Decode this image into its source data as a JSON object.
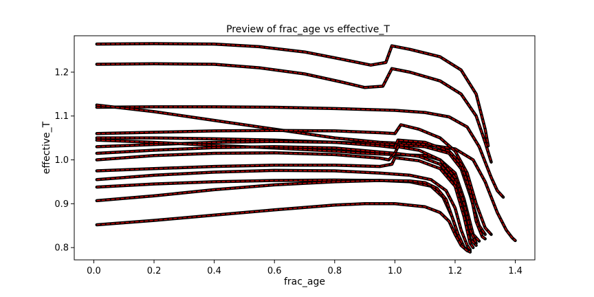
{
  "chart_data": {
    "type": "line",
    "title": "Preview of frac_age vs effective_T",
    "xlabel": "frac_age",
    "ylabel": "effective_T",
    "xlim": [
      -0.065,
      1.465
    ],
    "ylim": [
      0.772,
      1.283
    ],
    "xticks": [
      0.0,
      0.2,
      0.4,
      0.6,
      0.8,
      1.0,
      1.2,
      1.4
    ],
    "xtick_labels": [
      "0.0",
      "0.2",
      "0.4",
      "0.6",
      "0.8",
      "1.0",
      "1.2",
      "1.4"
    ],
    "yticks": [
      0.8,
      0.9,
      1.0,
      1.1,
      1.2
    ],
    "ytick_labels": [
      "0.8",
      "0.9",
      "1.0",
      "1.1",
      "1.2"
    ],
    "grid": false,
    "colors": {
      "line": "#c00000",
      "marker": "#000000",
      "axes": "#000000"
    },
    "series": [
      {
        "x": [
          0.01,
          0.2,
          0.4,
          0.55,
          0.7,
          0.82,
          0.92,
          0.97,
          0.99,
          1.05,
          1.15,
          1.22,
          1.27,
          1.3,
          1.31
        ],
        "y": [
          1.264,
          1.265,
          1.264,
          1.258,
          1.246,
          1.23,
          1.216,
          1.222,
          1.26,
          1.252,
          1.235,
          1.205,
          1.15,
          1.07,
          1.032
        ]
      },
      {
        "x": [
          0.01,
          0.2,
          0.4,
          0.55,
          0.7,
          0.82,
          0.9,
          0.96,
          0.99,
          1.05,
          1.15,
          1.22,
          1.27,
          1.3,
          1.32
        ],
        "y": [
          1.218,
          1.219,
          1.218,
          1.21,
          1.196,
          1.178,
          1.165,
          1.168,
          1.208,
          1.2,
          1.18,
          1.15,
          1.1,
          1.04,
          0.995
        ]
      },
      {
        "x": [
          0.01,
          0.2,
          0.4,
          0.6,
          0.8,
          1.0,
          1.1,
          1.18,
          1.24,
          1.28,
          1.32,
          1.34,
          1.36
        ],
        "y": [
          1.12,
          1.121,
          1.121,
          1.12,
          1.117,
          1.113,
          1.108,
          1.098,
          1.075,
          1.03,
          0.96,
          0.93,
          0.915
        ]
      },
      {
        "x": [
          0.01,
          0.2,
          0.4,
          0.6,
          0.8,
          0.95,
          1.1,
          1.2,
          1.26,
          1.3,
          1.34,
          1.37,
          1.39,
          1.4
        ],
        "y": [
          1.125,
          1.11,
          1.09,
          1.07,
          1.05,
          1.04,
          1.035,
          1.025,
          1.0,
          0.95,
          0.88,
          0.84,
          0.822,
          0.816
        ]
      },
      {
        "x": [
          0.01,
          0.2,
          0.4,
          0.6,
          0.8,
          0.95,
          1.0,
          1.02,
          1.08,
          1.15,
          1.2,
          1.24,
          1.27,
          1.3,
          1.32
        ],
        "y": [
          1.06,
          1.063,
          1.066,
          1.067,
          1.066,
          1.062,
          1.06,
          1.08,
          1.07,
          1.05,
          1.02,
          0.97,
          0.9,
          0.845,
          0.83
        ]
      },
      {
        "x": [
          0.01,
          0.2,
          0.4,
          0.6,
          0.8,
          0.9,
          1.0,
          1.1,
          1.18,
          1.22,
          1.25,
          1.28,
          1.3
        ],
        "y": [
          1.05,
          1.05,
          1.048,
          1.045,
          1.04,
          1.038,
          1.035,
          1.03,
          1.015,
          0.98,
          0.92,
          0.85,
          0.83
        ]
      },
      {
        "x": [
          0.01,
          0.2,
          0.4,
          0.6,
          0.8,
          0.95,
          1.0,
          1.01,
          1.1,
          1.18,
          1.22,
          1.25,
          1.27,
          1.29,
          1.3
        ],
        "y": [
          1.03,
          1.035,
          1.04,
          1.042,
          1.04,
          1.032,
          1.028,
          1.045,
          1.04,
          1.02,
          0.99,
          0.93,
          0.86,
          0.825,
          0.82
        ]
      },
      {
        "x": [
          0.01,
          0.2,
          0.4,
          0.6,
          0.8,
          0.9,
          1.0,
          1.1,
          1.15,
          1.2,
          1.23,
          1.26,
          1.28
        ],
        "y": [
          1.045,
          1.04,
          1.033,
          1.027,
          1.02,
          1.015,
          1.012,
          1.01,
          1.0,
          0.97,
          0.91,
          0.83,
          0.815
        ]
      },
      {
        "x": [
          0.01,
          0.2,
          0.4,
          0.6,
          0.8,
          0.95,
          1.0,
          1.01,
          1.08,
          1.15,
          1.2,
          1.23,
          1.25,
          1.27
        ],
        "y": [
          1.015,
          1.022,
          1.028,
          1.03,
          1.027,
          1.018,
          1.015,
          1.03,
          1.022,
          1.0,
          0.96,
          0.9,
          0.84,
          0.81
        ]
      },
      {
        "x": [
          0.01,
          0.2,
          0.4,
          0.6,
          0.8,
          0.95,
          0.98,
          1.0,
          1.08,
          1.15,
          1.2,
          1.23,
          1.25,
          1.27
        ],
        "y": [
          1.0,
          1.01,
          1.015,
          1.016,
          1.012,
          1.004,
          1.0,
          1.015,
          1.008,
          0.99,
          0.95,
          0.88,
          0.82,
          0.805
        ]
      },
      {
        "x": [
          0.01,
          0.2,
          0.4,
          0.6,
          0.8,
          0.95,
          0.99,
          1.0,
          1.08,
          1.15,
          1.2,
          1.23,
          1.25,
          1.26
        ],
        "y": [
          0.975,
          0.98,
          0.985,
          0.988,
          0.988,
          0.985,
          0.99,
          1.005,
          0.998,
          0.98,
          0.94,
          0.87,
          0.81,
          0.8
        ]
      },
      {
        "x": [
          0.01,
          0.2,
          0.4,
          0.6,
          0.8,
          0.95,
          1.05,
          1.12,
          1.17,
          1.2,
          1.22,
          1.24,
          1.25
        ],
        "y": [
          0.955,
          0.965,
          0.972,
          0.976,
          0.975,
          0.97,
          0.965,
          0.955,
          0.93,
          0.89,
          0.84,
          0.805,
          0.795
        ]
      },
      {
        "x": [
          0.01,
          0.2,
          0.4,
          0.6,
          0.8,
          0.95,
          1.05,
          1.12,
          1.16,
          1.19,
          1.21,
          1.23,
          1.25
        ],
        "y": [
          0.938,
          0.945,
          0.95,
          0.953,
          0.954,
          0.953,
          0.95,
          0.94,
          0.915,
          0.87,
          0.83,
          0.8,
          0.792
        ]
      },
      {
        "x": [
          0.01,
          0.2,
          0.4,
          0.6,
          0.8,
          0.95,
          1.05,
          1.1,
          1.14,
          1.17,
          1.19,
          1.21,
          1.23,
          1.25
        ],
        "y": [
          0.907,
          0.918,
          0.932,
          0.943,
          0.95,
          0.953,
          0.952,
          0.948,
          0.935,
          0.91,
          0.87,
          0.83,
          0.8,
          0.79
        ]
      },
      {
        "x": [
          0.01,
          0.2,
          0.4,
          0.6,
          0.8,
          0.9,
          1.0,
          1.1,
          1.15,
          1.18,
          1.2,
          1.22,
          1.24,
          1.25
        ],
        "y": [
          0.852,
          0.862,
          0.874,
          0.886,
          0.897,
          0.9,
          0.9,
          0.893,
          0.88,
          0.86,
          0.83,
          0.805,
          0.793,
          0.79
        ]
      }
    ]
  }
}
